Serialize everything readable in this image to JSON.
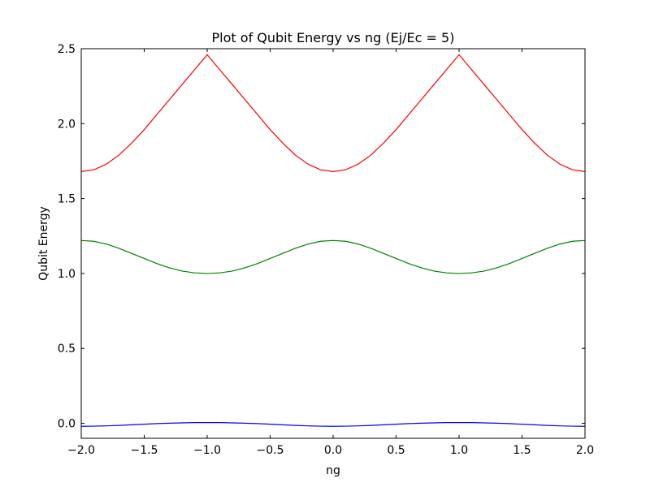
{
  "chart_data": {
    "type": "line",
    "title": "Plot of Qubit Energy vs ng (Ej/Ec = 5)",
    "xlabel": "ng",
    "ylabel": "Qubit Energy",
    "xlim": [
      -2.0,
      2.0
    ],
    "ylim": [
      -0.1,
      2.5
    ],
    "xticks": [
      -2.0,
      -1.5,
      -1.0,
      -0.5,
      0.0,
      0.5,
      1.0,
      1.5,
      2.0
    ],
    "xtick_labels": [
      "−2.0",
      "−1.5",
      "−1.0",
      "−0.5",
      "0.0",
      "0.5",
      "1.0",
      "1.5",
      "2.0"
    ],
    "yticks": [
      0.0,
      0.5,
      1.0,
      1.5,
      2.0,
      2.5
    ],
    "ytick_labels": [
      "0.0",
      "0.5",
      "1.0",
      "1.5",
      "2.0",
      "2.5"
    ],
    "grid": false,
    "x": [
      -2.0,
      -1.9,
      -1.8,
      -1.7,
      -1.6,
      -1.5,
      -1.4,
      -1.3,
      -1.2,
      -1.1,
      -1.0,
      -0.9,
      -0.8,
      -0.7,
      -0.6,
      -0.5,
      -0.4,
      -0.3,
      -0.2,
      -0.1,
      0.0,
      0.1,
      0.2,
      0.3,
      0.4,
      0.5,
      0.6,
      0.7,
      0.8,
      0.9,
      1.0,
      1.1,
      1.2,
      1.3,
      1.4,
      1.5,
      1.6,
      1.7,
      1.8,
      1.9,
      2.0
    ],
    "series": [
      {
        "color": "#0000ff",
        "values": [
          -0.02,
          -0.019,
          -0.017,
          -0.014,
          -0.01,
          -0.006,
          -0.002,
          0.001,
          0.003,
          0.005,
          0.005,
          0.005,
          0.003,
          0.001,
          -0.002,
          -0.006,
          -0.01,
          -0.014,
          -0.017,
          -0.019,
          -0.02,
          -0.019,
          -0.017,
          -0.014,
          -0.01,
          -0.006,
          -0.002,
          0.001,
          0.003,
          0.005,
          0.005,
          0.005,
          0.003,
          0.001,
          -0.002,
          -0.006,
          -0.01,
          -0.014,
          -0.017,
          -0.019,
          -0.02
        ]
      },
      {
        "color": "#008000",
        "values": [
          1.22,
          1.215,
          1.196,
          1.168,
          1.134,
          1.1,
          1.066,
          1.038,
          1.016,
          1.004,
          1.0,
          1.004,
          1.016,
          1.038,
          1.066,
          1.1,
          1.134,
          1.168,
          1.196,
          1.215,
          1.22,
          1.215,
          1.196,
          1.168,
          1.134,
          1.1,
          1.066,
          1.038,
          1.016,
          1.004,
          1.0,
          1.004,
          1.016,
          1.038,
          1.066,
          1.1,
          1.134,
          1.168,
          1.196,
          1.215,
          1.22
        ]
      },
      {
        "color": "#ff0000",
        "values": [
          1.68,
          1.692,
          1.73,
          1.79,
          1.87,
          1.96,
          2.06,
          2.16,
          2.26,
          2.36,
          2.46,
          2.36,
          2.26,
          2.16,
          2.06,
          1.96,
          1.87,
          1.79,
          1.73,
          1.692,
          1.68,
          1.692,
          1.73,
          1.79,
          1.87,
          1.96,
          2.06,
          2.16,
          2.26,
          2.36,
          2.46,
          2.36,
          2.26,
          2.16,
          2.06,
          1.96,
          1.87,
          1.79,
          1.73,
          1.692,
          1.68
        ]
      }
    ]
  }
}
